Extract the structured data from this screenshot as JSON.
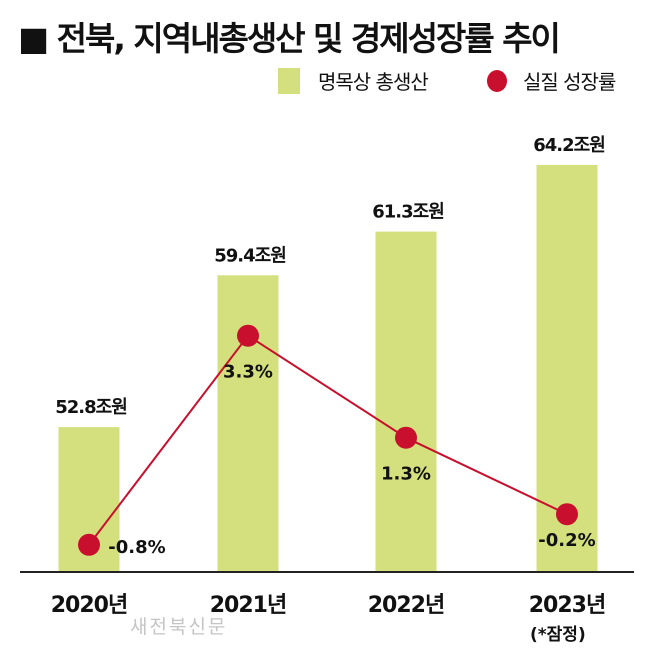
{
  "chart_data": {
    "type": "bar+line",
    "title": "■ 전북, 지역내총생산 및 경제성장률 추이",
    "categories": [
      "2020년",
      "2021년",
      "2022년",
      "2023년"
    ],
    "category_note": "(*잠정)",
    "series": [
      {
        "name": "명목상 총생산",
        "type": "bar",
        "color": "#d3e07d",
        "values": [
          52.8,
          59.4,
          61.3,
          64.2
        ],
        "labels": [
          "52.8조원",
          "59.4조원",
          "61.3조원",
          "64.2조원"
        ]
      },
      {
        "name": "실질 성장률",
        "type": "line",
        "color": "#c8102e",
        "values": [
          -0.8,
          3.3,
          1.3,
          -0.2
        ],
        "labels": [
          "-0.8%",
          "3.3%",
          "1.3%",
          "-0.2%"
        ]
      }
    ],
    "legend": "top-right",
    "grid": false
  },
  "watermark": "새전북신문"
}
